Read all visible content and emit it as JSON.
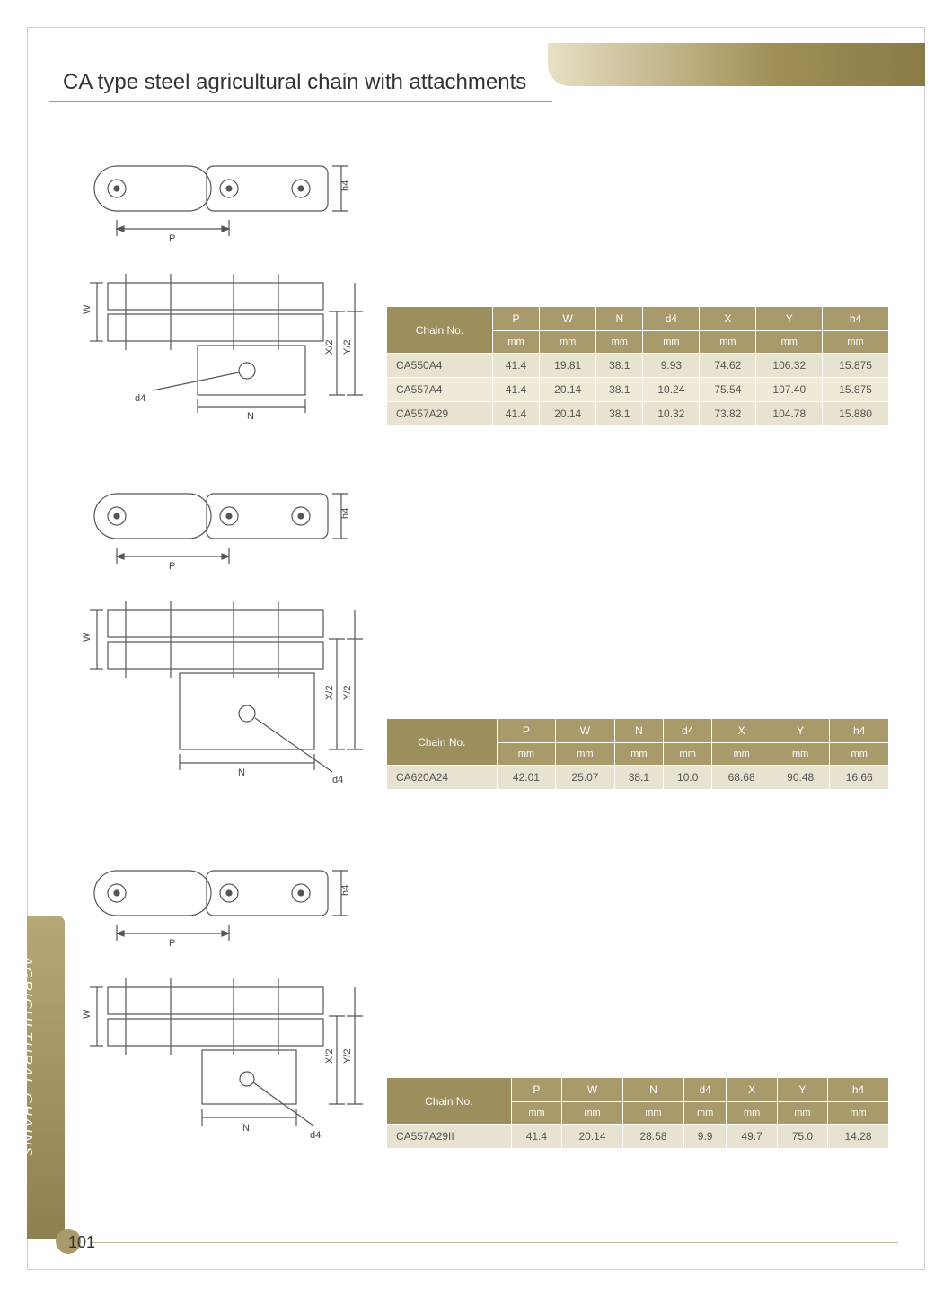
{
  "page": {
    "title": "CA type steel agricultural chain with attachments",
    "number": "101",
    "side_tab": "AGRICULTURAL CHAINS",
    "colors": {
      "accent": "#a89a6a",
      "accent_dark": "#8f8050",
      "header_gradient_start": "#e8e0c5",
      "header_gradient_end": "#8a7a45",
      "row_odd": "#e8e2d0",
      "row_even": "#efe9d8",
      "text": "#555555"
    }
  },
  "diagram_labels": {
    "P": "P",
    "W": "W",
    "N": "N",
    "d4": "d4",
    "h4": "h4",
    "X2": "X/2",
    "Y2": "Y/2"
  },
  "tables": {
    "header": {
      "chain_no": "Chain No.",
      "cols": [
        "P",
        "W",
        "N",
        "d4",
        "X",
        "Y",
        "h4"
      ],
      "unit": "mm"
    },
    "t1": {
      "rows": [
        [
          "CA550A4",
          "41.4",
          "19.81",
          "38.1",
          "9.93",
          "74.62",
          "106.32",
          "15.875"
        ],
        [
          "CA557A4",
          "41.4",
          "20.14",
          "38.1",
          "10.24",
          "75.54",
          "107.40",
          "15.875"
        ],
        [
          "CA557A29",
          "41.4",
          "20.14",
          "38.1",
          "10.32",
          "73.82",
          "104.78",
          "15.880"
        ]
      ]
    },
    "t2": {
      "rows": [
        [
          "CA620A24",
          "42.01",
          "25.07",
          "38.1",
          "10.0",
          "68.68",
          "90.48",
          "16.66"
        ]
      ]
    },
    "t3": {
      "rows": [
        [
          "CA557A29II",
          "41.4",
          "20.14",
          "28.58",
          "9.9",
          "49.7",
          "75.0",
          "14.28"
        ]
      ]
    }
  }
}
